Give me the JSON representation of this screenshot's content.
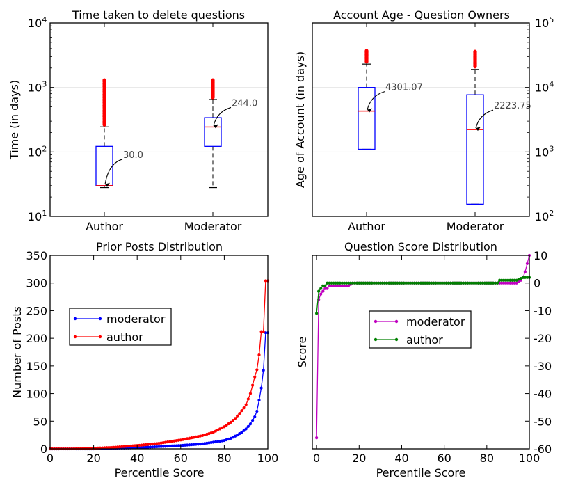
{
  "chart_data": [
    {
      "type": "boxplot",
      "title": "Time taken to delete questions",
      "ylabel": "Time (in days)",
      "yscale": "log",
      "ylim": [
        10,
        10000
      ],
      "yticks": [
        {
          "v": 10,
          "m": "1"
        },
        {
          "v": 100,
          "m": "2"
        },
        {
          "v": 1000,
          "m": "3"
        },
        {
          "v": 10000,
          "m": "4"
        }
      ],
      "categories": [
        "Author",
        "Moderator"
      ],
      "boxes": [
        {
          "whisker_low": 28,
          "q1": 30,
          "median": 30.0,
          "q3": 122,
          "whisker_high": 245,
          "outlier_low": 265,
          "outlier_high": 1300,
          "annotation": "30.0"
        },
        {
          "whisker_low": 28,
          "q1": 122,
          "median": 244.0,
          "q3": 340,
          "whisker_high": 650,
          "outlier_low": 700,
          "outlier_high": 1300,
          "annotation": "244.0"
        }
      ],
      "grid_y": true,
      "y_axis_side": "left"
    },
    {
      "type": "boxplot",
      "title": "Account Age - Question Owners",
      "ylabel": "Age of Account (in days)",
      "yscale": "log",
      "ylim": [
        100,
        100000
      ],
      "yticks": [
        {
          "v": 100,
          "m": "2"
        },
        {
          "v": 1000,
          "m": "3"
        },
        {
          "v": 10000,
          "m": "4"
        },
        {
          "v": 100000,
          "m": "5"
        }
      ],
      "categories": [
        "Author",
        "Moderator"
      ],
      "boxes": [
        {
          "whisker_low": 1100,
          "q1": 1100,
          "median": 4301.07,
          "q3": 10000,
          "whisker_high": 23000,
          "outlier_low": 25000,
          "outlier_high": 37000,
          "annotation": "4301.07"
        },
        {
          "whisker_low": 155,
          "q1": 155,
          "median": 2223.75,
          "q3": 7700,
          "whisker_high": 19000,
          "outlier_low": 21000,
          "outlier_high": 36000,
          "annotation": "2223.75"
        }
      ],
      "grid_y": true,
      "y_axis_side": "right"
    },
    {
      "type": "line",
      "title": "Prior Posts Distribution",
      "xlabel": "Percentile Score",
      "ylabel": "Number of Posts",
      "xlim": [
        0,
        100
      ],
      "ylim": [
        0,
        350
      ],
      "xticks": [
        0,
        20,
        40,
        60,
        80,
        100
      ],
      "yticks": [
        0,
        50,
        100,
        150,
        200,
        250,
        300,
        350
      ],
      "legend_position": "center-left",
      "series": [
        {
          "name": "moderator",
          "color": "#0000ff",
          "x": [
            0,
            10,
            20,
            30,
            40,
            50,
            60,
            70,
            75,
            80,
            83,
            86,
            88,
            90,
            92,
            94,
            95,
            96,
            97,
            98,
            99
          ],
          "y": [
            0,
            0,
            0,
            1,
            2,
            4,
            6,
            9,
            12,
            15,
            19,
            25,
            30,
            36,
            45,
            58,
            68,
            88,
            110,
            142,
            210
          ]
        },
        {
          "name": "author",
          "color": "#ff0000",
          "x": [
            0,
            10,
            20,
            30,
            40,
            50,
            60,
            70,
            75,
            80,
            83,
            85,
            87,
            89,
            90,
            91,
            92,
            93,
            94,
            95,
            96,
            97,
            98,
            99
          ],
          "y": [
            0,
            0,
            1,
            3,
            6,
            10,
            16,
            24,
            30,
            40,
            48,
            55,
            64,
            74,
            80,
            90,
            100,
            115,
            130,
            143,
            170,
            212,
            212,
            304
          ]
        }
      ]
    },
    {
      "type": "line",
      "title": "Question Score Distribution",
      "xlabel": "Percentile Score",
      "ylabel": "Score",
      "xlim": [
        -2,
        100
      ],
      "ylim": [
        -60,
        10
      ],
      "xticks": [
        0,
        20,
        40,
        60,
        80,
        100
      ],
      "yticks": [
        -60,
        -50,
        -40,
        -30,
        -20,
        -10,
        0,
        10
      ],
      "y_axis_side": "right",
      "legend_position": "center",
      "series": [
        {
          "name": "moderator",
          "color": "#c000c0",
          "x": [
            0,
            1,
            2,
            3,
            4,
            5,
            6,
            8,
            10,
            12,
            15,
            17,
            20,
            30,
            40,
            50,
            60,
            70,
            80,
            85,
            90,
            94,
            96,
            97,
            98,
            99,
            100
          ],
          "y": [
            -56,
            -6,
            -4,
            -3,
            -2,
            -2,
            -1,
            -1,
            -1,
            -1,
            -1,
            0,
            0,
            0,
            0,
            0,
            0,
            0,
            0,
            0,
            0,
            0,
            1,
            2,
            4,
            7,
            10
          ]
        },
        {
          "name": "author",
          "color": "#008000",
          "x": [
            0,
            1,
            2,
            3,
            4,
            5,
            7,
            10,
            15,
            20,
            30,
            40,
            50,
            60,
            70,
            80,
            85,
            86,
            90,
            94,
            97,
            99,
            100
          ],
          "y": [
            -11,
            -3,
            -2,
            -1,
            -1,
            0,
            0,
            0,
            0,
            0,
            0,
            0,
            0,
            0,
            0,
            0,
            0,
            1,
            1,
            1,
            2,
            2,
            2
          ]
        }
      ]
    }
  ]
}
